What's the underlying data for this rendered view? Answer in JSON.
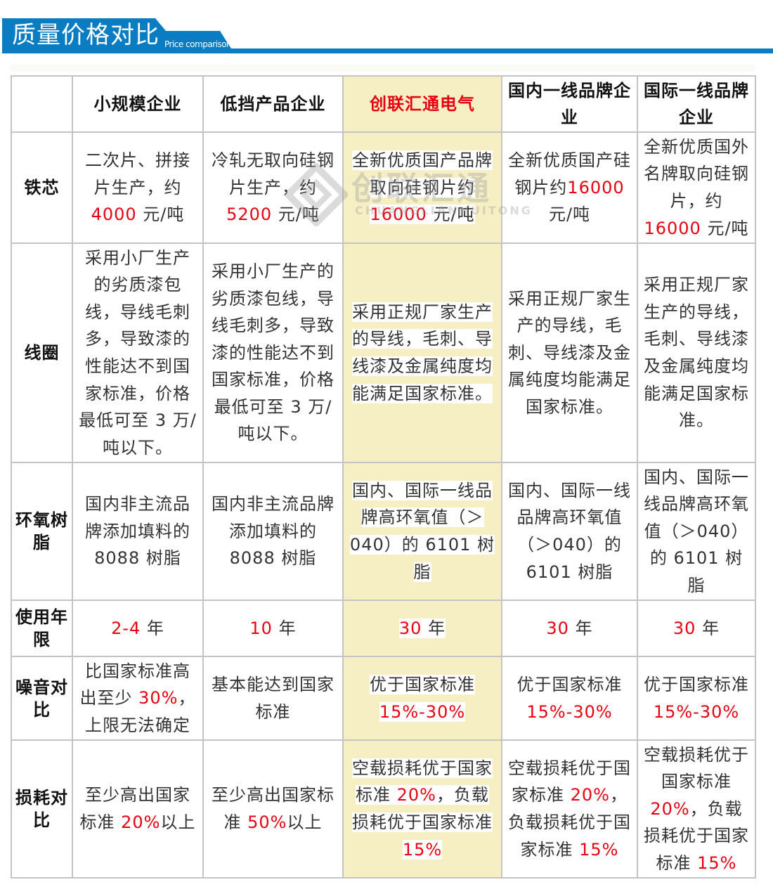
{
  "banner": {
    "title": "质量价格对比",
    "subtitle": "Price comparison",
    "color": "#0a7cc1"
  },
  "watermark": {
    "text": "创联汇通",
    "sub": "CHUANGLIANHUITONG"
  },
  "colors": {
    "red": "#e60012",
    "highlight": "#f6efc3",
    "border": "#c4c4c4"
  },
  "headers": [
    "",
    "小规模企业",
    "低挡产品企业",
    "创联汇通电气",
    "国内一线品牌企业",
    "国际一线品牌企业"
  ],
  "highlight_column": 3,
  "rows": [
    {
      "label": "铁芯",
      "cells": [
        [
          {
            "text": "二次片、拼接片生产，约"
          },
          {
            "text": "4000",
            "red": true
          },
          {
            "text": " 元/吨"
          }
        ],
        [
          {
            "text": "冷轧无取向硅钢片生产，约"
          },
          {
            "text": "5200",
            "red": true
          },
          {
            "text": " 元/吨"
          }
        ],
        [
          {
            "text": "全新优质国产品牌取向硅钢片约"
          },
          {
            "text": "16000",
            "red": true
          },
          {
            "text": " 元/吨"
          }
        ],
        [
          {
            "text": "全新优质国产硅钢片约"
          },
          {
            "text": "16000",
            "red": true
          },
          {
            "text": " 元/吨"
          }
        ],
        [
          {
            "text": "全新优质国外名牌取向硅钢片，约"
          },
          {
            "text": "16000",
            "red": true
          },
          {
            "text": " 元/吨"
          }
        ]
      ]
    },
    {
      "label": "线圈",
      "cells": [
        [
          {
            "text": "采用小厂生产的劣质漆包线，导线毛刺多，导致漆的性能达不到国家标准，价格最低可至 3 万/吨以下。"
          }
        ],
        [
          {
            "text": "采用小厂生产的劣质漆包线，导线毛刺多，导致漆的性能达不到国家标准，价格最低可至 3 万/吨以下。"
          }
        ],
        [
          {
            "text": "采用正规厂家生产的导线，毛刺、导线漆及金属纯度均能满足国家标准。"
          }
        ],
        [
          {
            "text": "采用正规厂家生产的导线，毛刺、导线漆及金属纯度均能满足国家标准。"
          }
        ],
        [
          {
            "text": "采用正规厂家生产的导线，毛刺、导线漆及金属纯度均能满足国家标准。"
          }
        ]
      ]
    },
    {
      "label": "环氧树脂",
      "cells": [
        [
          {
            "text": "国内非主流品牌添加填料的 8088 树脂"
          }
        ],
        [
          {
            "text": "国内非主流品牌添加填料的 8088 树脂"
          }
        ],
        [
          {
            "text": "国内、国际一线品牌高环氧值（＞040）的 6101 树脂"
          }
        ],
        [
          {
            "text": "国内、国际一线品牌高环氧值（＞040）的 6101 树脂"
          }
        ],
        [
          {
            "text": "国内、国际一线品牌高环氧值（＞040）的 6101 树脂"
          }
        ]
      ]
    },
    {
      "label": "使用年限",
      "cells": [
        [
          {
            "text": "2-4",
            "red": true
          },
          {
            "text": " 年"
          }
        ],
        [
          {
            "text": "10",
            "red": true
          },
          {
            "text": " 年"
          }
        ],
        [
          {
            "text": "30",
            "red": true
          },
          {
            "text": " 年"
          }
        ],
        [
          {
            "text": "30",
            "red": true
          },
          {
            "text": " 年"
          }
        ],
        [
          {
            "text": "30",
            "red": true
          },
          {
            "text": " 年"
          }
        ]
      ]
    },
    {
      "label": "噪音对比",
      "cells": [
        [
          {
            "text": "比国家标准高出至少 "
          },
          {
            "text": "30%",
            "red": true
          },
          {
            "text": "，上限无法确定"
          }
        ],
        [
          {
            "text": "基本能达到国家标准"
          }
        ],
        [
          {
            "text": "优于国家标准 "
          },
          {
            "text": "15%-30%",
            "red": true
          }
        ],
        [
          {
            "text": "优于国家标准 "
          },
          {
            "text": "15%-30%",
            "red": true
          }
        ],
        [
          {
            "text": "优于国家标准 "
          },
          {
            "text": "15%-30%",
            "red": true
          }
        ]
      ]
    },
    {
      "label": "损耗对比",
      "cells": [
        [
          {
            "text": "至少高出国家标准 "
          },
          {
            "text": "20%",
            "red": true
          },
          {
            "text": "以上"
          }
        ],
        [
          {
            "text": "至少高出国家标准 "
          },
          {
            "text": "50%",
            "red": true
          },
          {
            "text": "以上"
          }
        ],
        [
          {
            "text": "空载损耗优于国家标准 "
          },
          {
            "text": "20%",
            "red": true
          },
          {
            "text": "，负载损耗优于国家标准 "
          },
          {
            "text": "15%",
            "red": true
          }
        ],
        [
          {
            "text": "空载损耗优于国家标准 "
          },
          {
            "text": "20%",
            "red": true
          },
          {
            "text": "，负载损耗优于国家标准 "
          },
          {
            "text": "15%",
            "red": true
          }
        ],
        [
          {
            "text": "空载损耗优于国家标准 "
          },
          {
            "text": "20%",
            "red": true
          },
          {
            "text": "，负载损耗优于国家标准 "
          },
          {
            "text": "15%",
            "red": true
          }
        ]
      ]
    }
  ]
}
